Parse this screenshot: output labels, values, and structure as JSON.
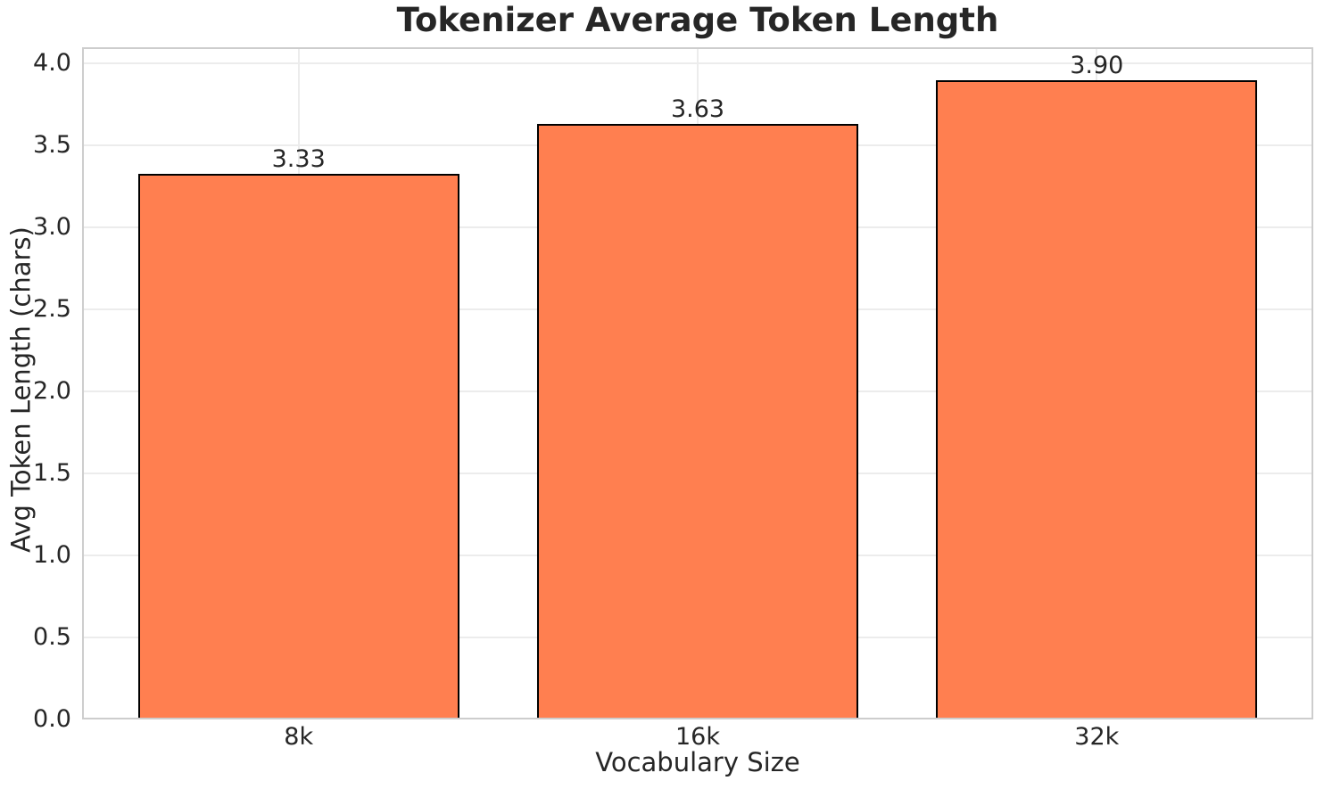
{
  "page": {
    "background_color": "#ffffff"
  },
  "chart_data": {
    "type": "bar",
    "title": "Tokenizer Average Token Length",
    "xlabel": "Vocabulary Size",
    "ylabel": "Avg Token Length (chars)",
    "categories": [
      "8k",
      "16k",
      "32k"
    ],
    "values": [
      3.33,
      3.63,
      3.9
    ],
    "value_labels": [
      "3.33",
      "3.63",
      "3.90"
    ],
    "ylim": [
      0,
      4.1
    ],
    "yticks": [
      0.0,
      0.5,
      1.0,
      1.5,
      2.0,
      2.5,
      3.0,
      3.5,
      4.0
    ],
    "ytick_labels": [
      "0.0",
      "0.5",
      "1.0",
      "1.5",
      "2.0",
      "2.5",
      "3.0",
      "3.5",
      "4.0"
    ],
    "grid": true,
    "grid_orientation": "both",
    "legend": null,
    "colors": {
      "bar_fill": "#ff7f50",
      "bar_edge": "#000000",
      "grid_line": "#ececec",
      "frame": "#cdcdcd",
      "text": "#262626"
    }
  }
}
